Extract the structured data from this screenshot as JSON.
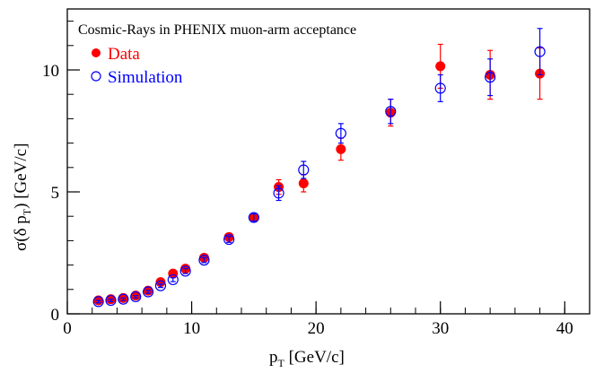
{
  "chart_data": {
    "type": "scatter",
    "title": "Cosmic-Rays in PHENIX muon-arm acceptance",
    "xlabel": "p",
    "xlabel_sub": "T",
    "xlabel_unit": " [GeV/c]",
    "ylabel_pre": "σ(δ p",
    "ylabel_sub": "T",
    "ylabel_post": ") [GeV/c]",
    "xlim": [
      0,
      42
    ],
    "ylim": [
      0,
      12.5
    ],
    "xticks": [
      0,
      10,
      20,
      30,
      40
    ],
    "xtick_labels": [
      "0",
      "10",
      "20",
      "30",
      "40"
    ],
    "yticks": [
      0,
      5,
      10
    ],
    "ytick_labels": [
      "0",
      "5",
      "10"
    ],
    "xminor_step": 2,
    "yminor_step": 1,
    "grid": false,
    "legend_position": "top-left",
    "series": [
      {
        "name": "Data",
        "marker": "filled-circle",
        "color": "#ff0000",
        "x": [
          2.5,
          3.5,
          4.5,
          5.5,
          6.5,
          7.5,
          8.5,
          9.5,
          11,
          13,
          15,
          17,
          19,
          22,
          26,
          30,
          34,
          38
        ],
        "y": [
          0.55,
          0.6,
          0.65,
          0.75,
          0.95,
          1.3,
          1.65,
          1.85,
          2.3,
          3.15,
          3.95,
          5.2,
          5.35,
          6.75,
          8.25,
          10.15,
          9.8,
          9.85
        ],
        "err": [
          0.05,
          0.05,
          0.05,
          0.05,
          0.06,
          0.07,
          0.08,
          0.1,
          0.1,
          0.12,
          0.15,
          0.3,
          0.35,
          0.45,
          0.55,
          0.9,
          1.0,
          1.05
        ]
      },
      {
        "name": "Simulation",
        "marker": "open-circle",
        "color": "#0000ff",
        "x": [
          2.5,
          3.5,
          4.5,
          5.5,
          6.5,
          7.5,
          8.5,
          9.5,
          11,
          13,
          15,
          17,
          19,
          22,
          26,
          30,
          34,
          38
        ],
        "y": [
          0.5,
          0.55,
          0.6,
          0.7,
          0.9,
          1.15,
          1.4,
          1.75,
          2.2,
          3.05,
          3.95,
          4.95,
          5.9,
          7.4,
          8.3,
          9.25,
          9.7,
          10.75
        ],
        "err": [
          0.05,
          0.05,
          0.05,
          0.05,
          0.06,
          0.07,
          0.08,
          0.1,
          0.1,
          0.12,
          0.15,
          0.3,
          0.35,
          0.4,
          0.5,
          0.55,
          0.75,
          0.95
        ]
      }
    ]
  }
}
